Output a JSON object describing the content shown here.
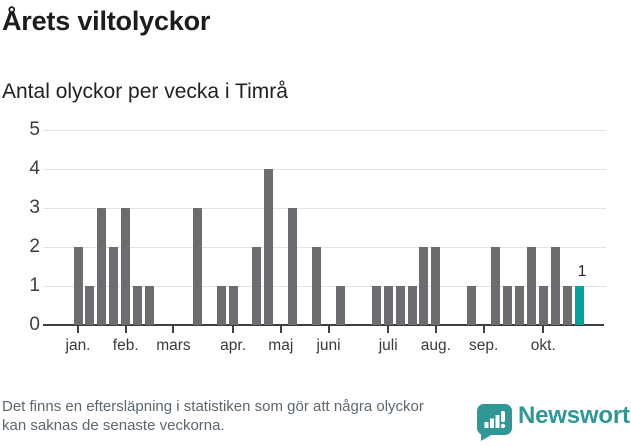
{
  "header": {
    "title": "Årets viltolyckor",
    "subtitle": "Antal olyckor per vecka i Timrå"
  },
  "chart_data": {
    "type": "bar",
    "title": "Årets viltolyckor",
    "subtitle": "Antal olyckor per vecka i Timrå",
    "x_unit": "vecka",
    "values": [
      2,
      1,
      3,
      2,
      3,
      1,
      1,
      0,
      0,
      0,
      3,
      0,
      1,
      1,
      0,
      2,
      4,
      0,
      3,
      0,
      2,
      0,
      1,
      0,
      0,
      1,
      1,
      1,
      1,
      2,
      2,
      0,
      0,
      1,
      0,
      2,
      1,
      1,
      2,
      1,
      2,
      1,
      1
    ],
    "y_ticks": [
      0,
      1,
      2,
      3,
      4,
      5
    ],
    "ylim": [
      0,
      5
    ],
    "month_ticks": [
      {
        "label": "jan.",
        "week_index": 0
      },
      {
        "label": "feb.",
        "week_index": 4
      },
      {
        "label": "mars",
        "week_index": 8
      },
      {
        "label": "apr.",
        "week_index": 13
      },
      {
        "label": "maj",
        "week_index": 17
      },
      {
        "label": "juni",
        "week_index": 21
      },
      {
        "label": "juli",
        "week_index": 26
      },
      {
        "label": "aug.",
        "week_index": 30
      },
      {
        "label": "sep.",
        "week_index": 34
      },
      {
        "label": "okt.",
        "week_index": 39
      }
    ],
    "highlight_last_bar": true,
    "last_bar_label": "1",
    "grid": true,
    "colors": {
      "bar": "#6d6d71",
      "highlight": "#00a39e",
      "gridline": "#e4e4e4",
      "axis": "#3f3f3f",
      "labels": "#3d3d3d"
    }
  },
  "footer": {
    "note": "Det finns en eftersläpning i statistiken som gör att några olyckor kan saknas de senaste veckorna.",
    "brand_name": "Newsworthy",
    "brand_color": "#2f9795"
  }
}
